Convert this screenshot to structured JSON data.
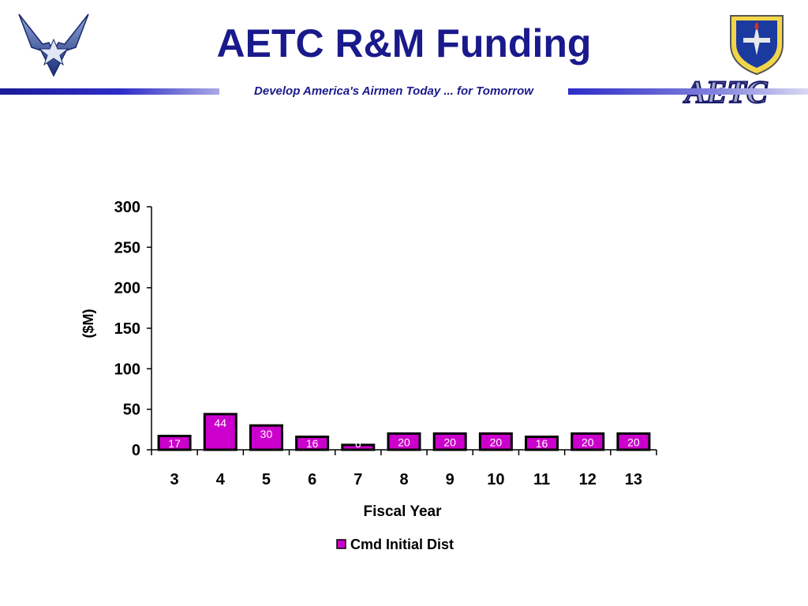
{
  "header": {
    "title": "AETC R&M Funding",
    "tagline": "Develop America's Airmen Today ... for Tomorrow",
    "wordmark": "AETC"
  },
  "colors": {
    "brand_blue": "#1a1a8c",
    "bar_fill": "#cc00cc",
    "bar_edge": "#000000"
  },
  "chart_data": {
    "type": "bar",
    "categories": [
      "3",
      "4",
      "5",
      "6",
      "7",
      "8",
      "9",
      "10",
      "11",
      "12",
      "13"
    ],
    "series": [
      {
        "name": "Cmd Initial Dist",
        "values": [
          17,
          44,
          30,
          16,
          6,
          20,
          20,
          20,
          16,
          20,
          20
        ]
      }
    ],
    "data_labels": [
      "17",
      "44",
      "30",
      "16",
      "6",
      "20",
      "20",
      "20",
      "16",
      "20",
      "20"
    ],
    "xlabel": "Fiscal Year",
    "ylabel": "($M)",
    "ylim": [
      0,
      300
    ],
    "yticks": [
      0,
      50,
      100,
      150,
      200,
      250,
      300
    ],
    "grid": false,
    "legend": "bottom-center"
  }
}
